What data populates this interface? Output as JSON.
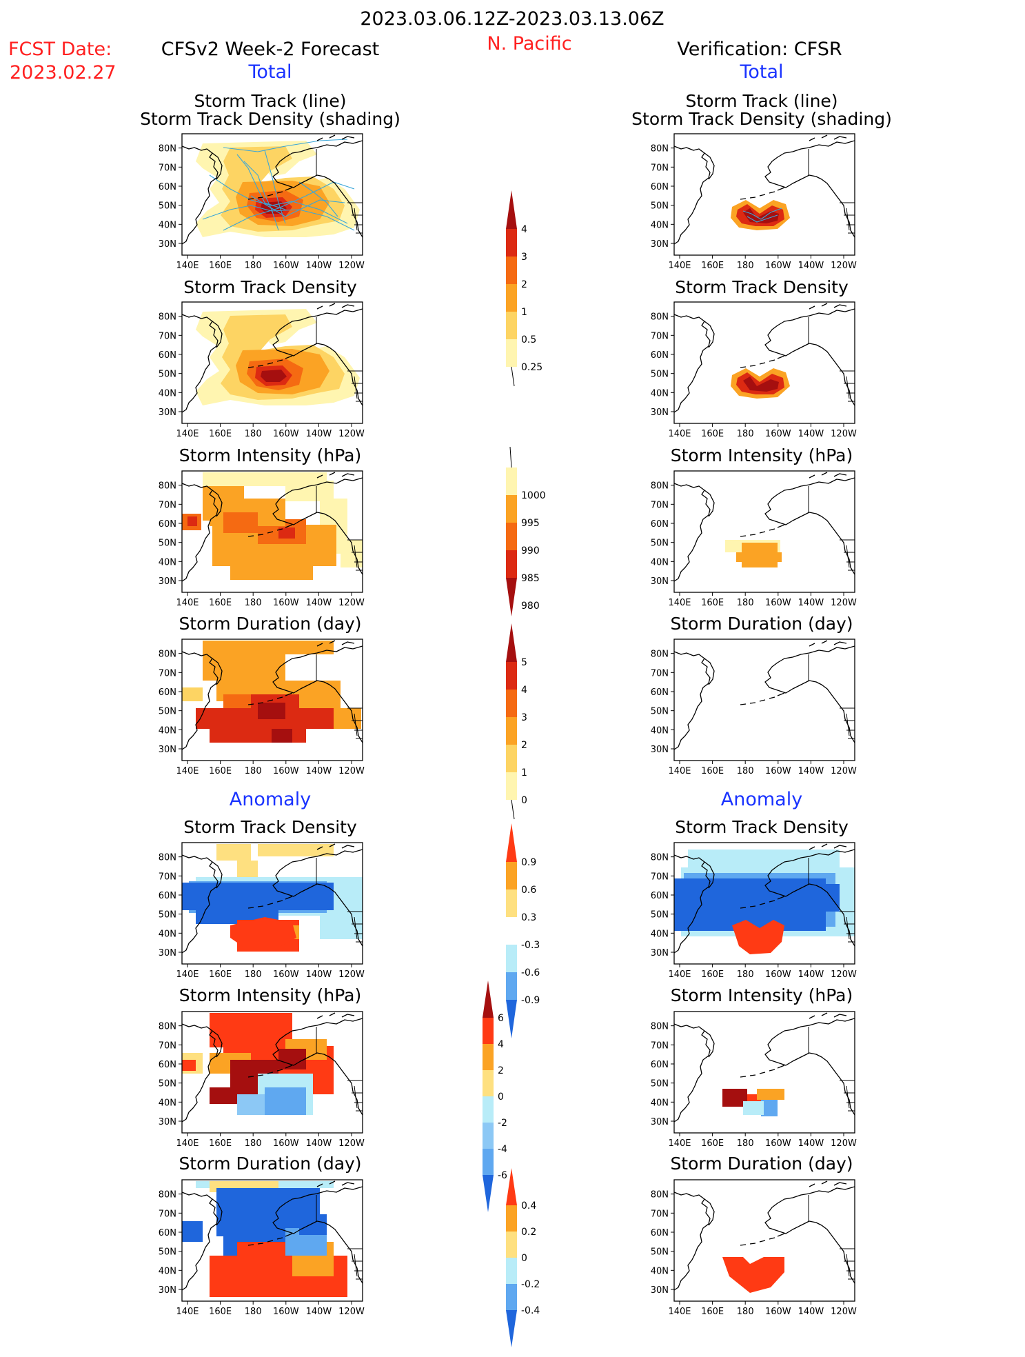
{
  "header": {
    "date_range": "2023.03.06.12Z-2023.03.13.06Z",
    "fcst_label": "FCST Date:",
    "fcst_date": "2023.02.27",
    "forecast_title": "CFSv2 Week-2 Forecast",
    "region": "N. Pacific",
    "verification_title": "Verification: CFSR",
    "total_left": "Total",
    "total_right": "Total",
    "anomaly_left": "Anomaly",
    "anomaly_right": "Anomaly"
  },
  "axes": {
    "lat_labels": [
      "80N",
      "70N",
      "60N",
      "50N",
      "40N",
      "30N"
    ],
    "lon_labels": [
      "140E",
      "160E",
      "180",
      "160W",
      "140W",
      "120W"
    ]
  },
  "panels": {
    "track": {
      "title1": "Storm Track (line)",
      "title2": "Storm Track Density (shading)"
    },
    "density": {
      "title": "Storm Track Density"
    },
    "intensity": {
      "title": "Storm Intensity (hPa)"
    },
    "duration": {
      "title": "Storm Duration (day)"
    },
    "anom_density": {
      "title": "Storm Track Density"
    },
    "anom_intensity": {
      "title": "Storm Intensity (hPa)"
    },
    "anom_duration": {
      "title": "Storm Duration (day)"
    }
  },
  "colorbars": {
    "density": {
      "labels": [
        "4",
        "3",
        "2",
        "1",
        "0.5",
        "0.25"
      ],
      "colors": [
        "#a50f0f",
        "#dc2a12",
        "#f56a12",
        "#fba324",
        "#fdd463",
        "#fff5b0"
      ]
    },
    "intensity": {
      "labels": [
        "1000",
        "995",
        "990",
        "985",
        "980"
      ],
      "colors": [
        "#fff5b0",
        "#fba324",
        "#f56a12",
        "#dc2a12",
        "#a50f0f"
      ]
    },
    "duration": {
      "labels": [
        "5",
        "4",
        "3",
        "2",
        "1",
        "0"
      ],
      "colors": [
        "#a50f0f",
        "#dc2a12",
        "#f56a12",
        "#fba324",
        "#fdd463",
        "#fff5b0"
      ]
    },
    "anom_density": {
      "labels": [
        "0.9",
        "0.6",
        "0.3",
        "-0.3",
        "-0.6",
        "-0.9"
      ],
      "colors": [
        "#ff3a14",
        "#fba324",
        "#fee080",
        "#ffffff",
        "#b8ecf8",
        "#5fa8f0",
        "#1f66dc"
      ]
    },
    "anom_intensity": {
      "labels": [
        "6",
        "4",
        "2",
        "0",
        "-2",
        "-4",
        "-6"
      ],
      "colors": [
        "#a50f0f",
        "#ff3a14",
        "#fba324",
        "#fee080",
        "#b8ecf8",
        "#8cc8f5",
        "#5fa8f0",
        "#1f66dc"
      ]
    },
    "anom_duration": {
      "labels": [
        "0.4",
        "0.2",
        "0",
        "-0.2",
        "-0.4"
      ],
      "colors": [
        "#ff3a14",
        "#fba324",
        "#fee080",
        "#b8ecf8",
        "#5fa8f0",
        "#1f66dc"
      ]
    }
  }
}
